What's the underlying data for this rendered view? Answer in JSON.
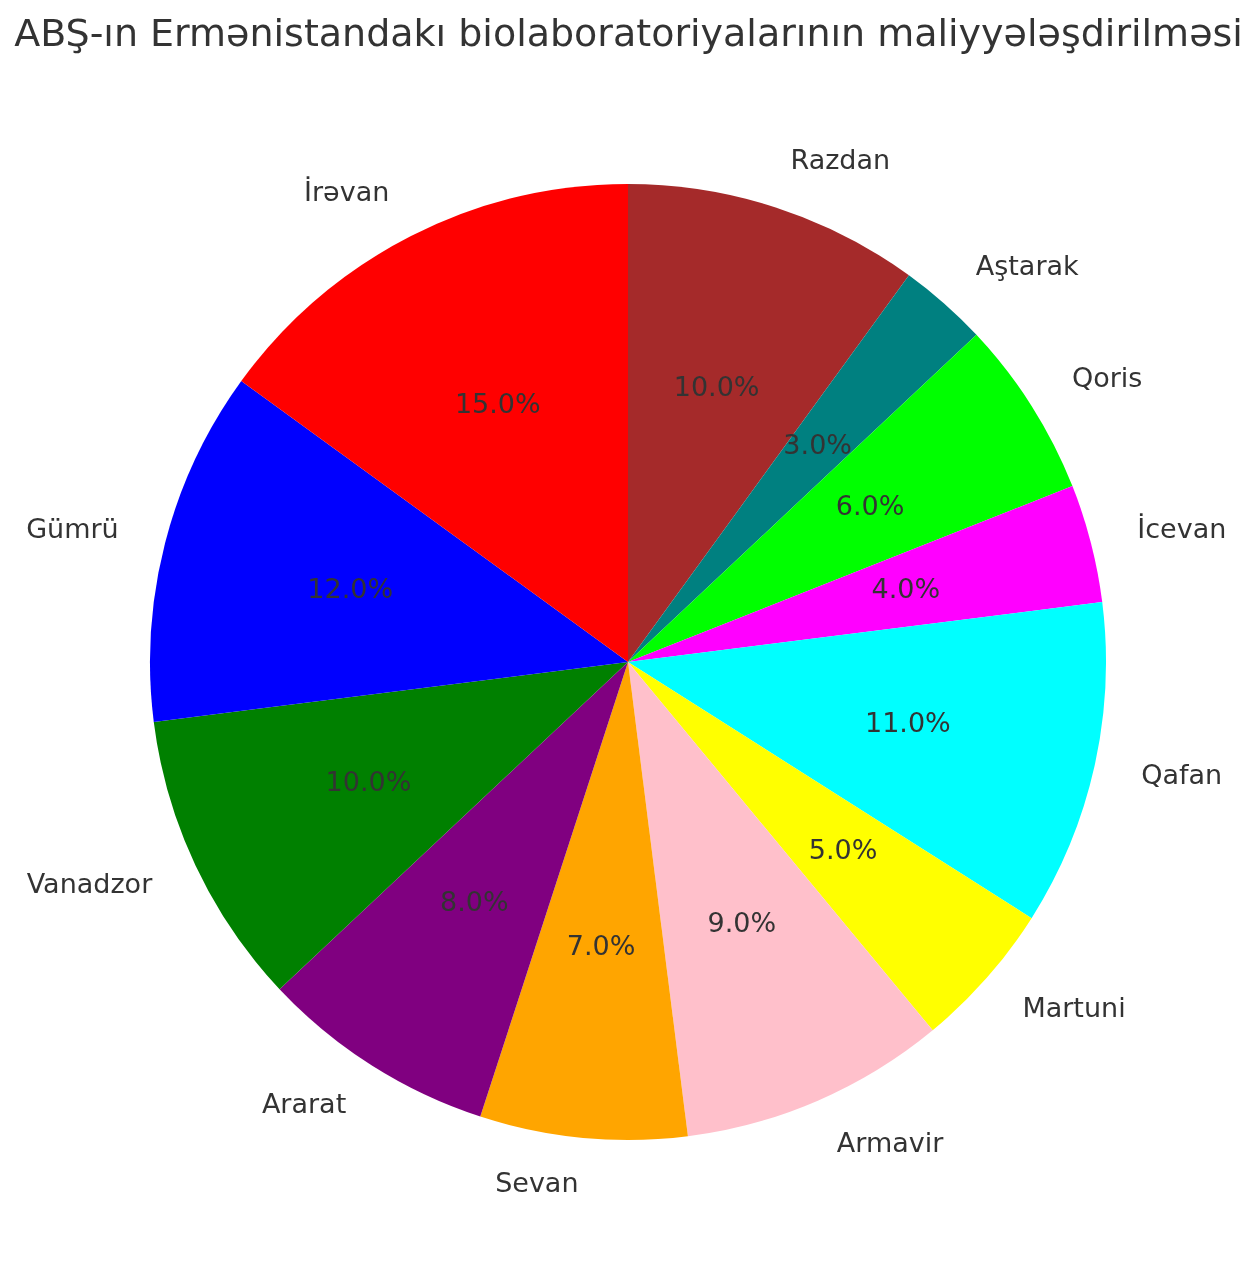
{
  "chart_data": {
    "type": "pie",
    "title": "ABŞ-ın Ermənistandakı biolaboratoriyalarının maliyyələşdirilməsi",
    "categories": [
      "Razdan",
      "Aştarak",
      "Qoris",
      "İcevan",
      "Qafan",
      "Martuni",
      "Armavir",
      "Sevan",
      "Ararat",
      "Vanadzor",
      "Gümrü",
      "İrəvan"
    ],
    "values": [
      10,
      3,
      6,
      4,
      11,
      5,
      9,
      7,
      8,
      10,
      12,
      15
    ],
    "colors": [
      "#a52a2a",
      "#008080",
      "#00ff00",
      "#ff00ff",
      "#00ffff",
      "#ffff00",
      "#ffc0cb",
      "#ffa500",
      "#800080",
      "#008000",
      "#0000ff",
      "#ff0000"
    ],
    "value_labels": [
      "10.0%",
      "3.0%",
      "6.0%",
      "4.0%",
      "11.0%",
      "5.0%",
      "9.0%",
      "7.0%",
      "8.0%",
      "10.0%",
      "12.0%",
      "15.0%"
    ]
  }
}
